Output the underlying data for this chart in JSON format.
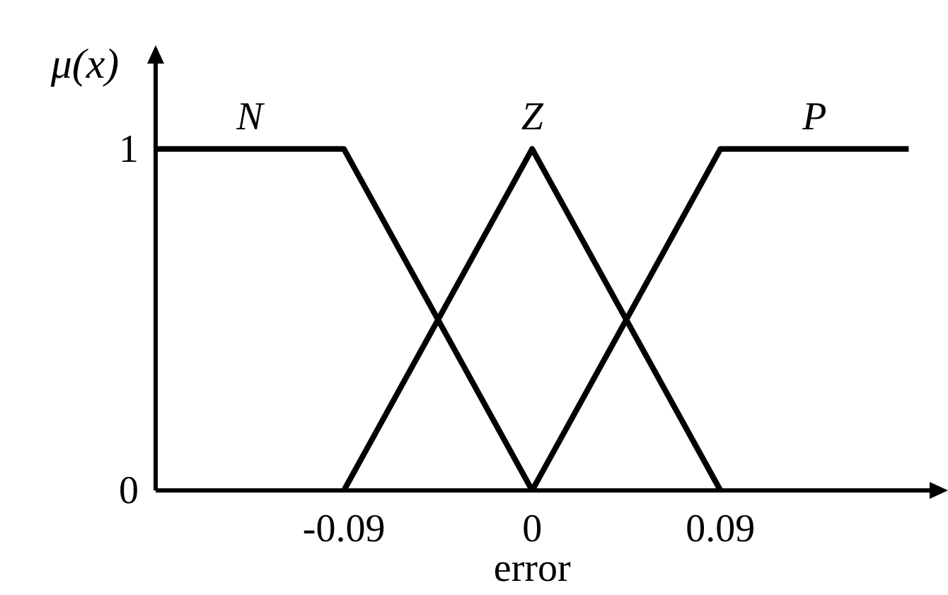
{
  "chart_data": {
    "type": "line",
    "xlabel": "error",
    "ylabel": "μ(x)",
    "series": [
      {
        "name": "N",
        "color": "#000000",
        "x": [
          -0.18,
          -0.09,
          0
        ],
        "values": [
          1,
          1,
          0
        ]
      },
      {
        "name": "Z",
        "color": "#000000",
        "x": [
          -0.09,
          0,
          0.09
        ],
        "values": [
          0,
          1,
          0
        ]
      },
      {
        "name": "P",
        "color": "#000000",
        "x": [
          0,
          0.09,
          0.18
        ],
        "values": [
          0,
          1,
          1
        ]
      }
    ],
    "xlim": [
      -0.18,
      0.19
    ],
    "ylim": [
      0,
      1.25
    ],
    "xticks": [
      -0.09,
      0,
      0.09
    ],
    "yticks": [
      0,
      1
    ],
    "grid": false,
    "marker": "none",
    "line_style": "solid"
  }
}
